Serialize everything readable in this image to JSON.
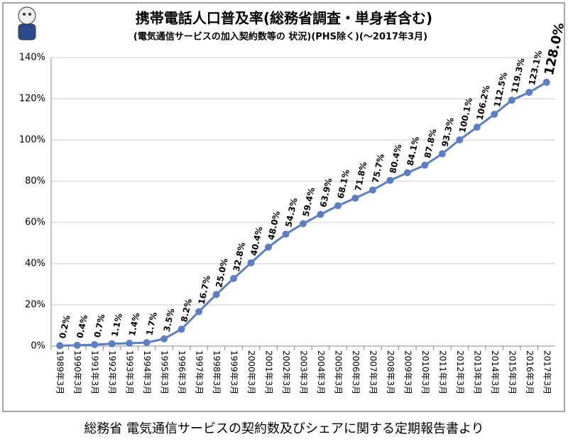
{
  "chart_data": {
    "type": "line",
    "title": "携帯電話人口普及率(総務省調査・単身者含む)",
    "subtitle": "(電気通信サービスの加入契約数等の 状況)(PHS除く)(～2017年3月)",
    "source": "総務省 電気通信サービスの契約数及びシェアに関する定期報告書より",
    "categories": [
      "1989年3月",
      "1990年3月",
      "1991年3月",
      "1992年3月",
      "1993年3月",
      "1994年3月",
      "1995年3月",
      "1996年3月",
      "1997年3月",
      "1998年3月",
      "1999年3月",
      "2000年3月",
      "2001年3月",
      "2002年3月",
      "2003年3月",
      "2004年3月",
      "2005年3月",
      "2006年3月",
      "2007年3月",
      "2008年3月",
      "2009年3月",
      "2010年3月",
      "2011年3月",
      "2012年3月",
      "2013年3月",
      "2014年3月",
      "2015年3月",
      "2016年3月",
      "2017年3月"
    ],
    "values": [
      0.2,
      0.4,
      0.7,
      1.1,
      1.4,
      1.7,
      3.5,
      8.2,
      16.7,
      25.0,
      32.8,
      40.4,
      48.0,
      54.3,
      59.4,
      63.9,
      68.1,
      71.8,
      75.7,
      80.4,
      84.1,
      87.8,
      93.3,
      100.1,
      106.2,
      112.5,
      119.3,
      123.1,
      128.0
    ],
    "value_labels": [
      "0.2%",
      "0.4%",
      "0.7%",
      "1.1%",
      "1.4%",
      "1.7%",
      "3.5%",
      "8.2%",
      "16.7%",
      "25.0%",
      "32.8%",
      "40.4%",
      "48.0%",
      "54.3%",
      "59.4%",
      "63.9%",
      "68.1%",
      "71.8%",
      "75.7%",
      "80.4%",
      "84.1%",
      "87.8%",
      "93.3%",
      "100.1%",
      "106.2%",
      "112.5%",
      "119.3%",
      "123.1%",
      "128.0%"
    ],
    "color": "#5b7fc0",
    "ylim": [
      0,
      140
    ],
    "yticks": [
      {
        "value": 0,
        "label": "0%"
      },
      {
        "value": 20,
        "label": "20%"
      },
      {
        "value": 40,
        "label": "40%"
      },
      {
        "value": 60,
        "label": "60%"
      },
      {
        "value": 80,
        "label": "80%"
      },
      {
        "value": 100,
        "label": "100%"
      },
      {
        "value": 120,
        "label": "120%"
      },
      {
        "value": 140,
        "label": "140%"
      }
    ],
    "grid": true
  }
}
